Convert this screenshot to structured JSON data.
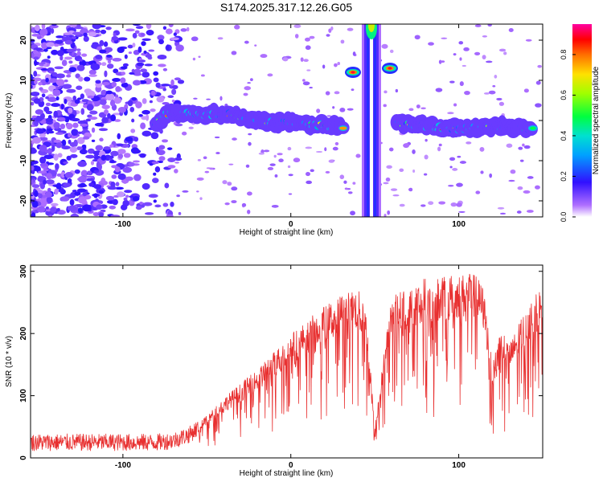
{
  "title": "S174.2025.317.12.26.G05",
  "chart_data": [
    {
      "type": "heatmap",
      "xlabel": "Height of straight line (km)",
      "ylabel": "Frequency (Hz)",
      "xlim": [
        -155,
        150
      ],
      "ylim": [
        -24,
        24
      ],
      "xticks": [
        -100,
        0,
        100
      ],
      "yticks": [
        -20,
        -10,
        0,
        10,
        20
      ],
      "colorbar": {
        "label": "Normalized spectral amplitude",
        "range": [
          0,
          0.95
        ],
        "ticks": [
          0.0,
          0.2,
          0.4,
          0.6,
          0.8
        ],
        "tick_labels": [
          "0.0",
          "0.2",
          "0.4",
          "0.6",
          "0.8"
        ]
      },
      "features": [
        {
          "name": "noise-region",
          "x_range": [
            -155,
            -65
          ],
          "y_range": [
            -24,
            24
          ],
          "amplitude": "low-moderate"
        },
        {
          "name": "main-track",
          "points": [
            [
              -80,
              -1
            ],
            [
              -72,
              2
            ],
            [
              -55,
              1.5
            ],
            [
              -35,
              1.5
            ],
            [
              -20,
              0
            ],
            [
              0,
              -0.5
            ],
            [
              25,
              -1.5
            ],
            [
              32,
              -1.5
            ]
          ],
          "amplitude_peak": 0.9
        },
        {
          "name": "sideband-upper-left",
          "x": 37,
          "y": 12,
          "amplitude_peak": 0.9
        },
        {
          "name": "sideband-upper-right",
          "x": 59,
          "y": 13,
          "amplitude_peak": 0.9
        },
        {
          "name": "vertical-streak",
          "x": 48,
          "y_range": [
            -24,
            24
          ],
          "amplitude_peak": 0.85
        },
        {
          "name": "main-track-right",
          "points": [
            [
              63,
              -0.5
            ],
            [
              80,
              -1.5
            ],
            [
              100,
              -2
            ],
            [
              120,
              -1.5
            ],
            [
              145,
              -2
            ]
          ],
          "amplitude_peak": 0.9
        }
      ]
    },
    {
      "type": "line",
      "xlabel": "Height of straight line (km)",
      "ylabel": "SNR (10 * v/v)",
      "xlim": [
        -155,
        150
      ],
      "ylim": [
        0,
        310
      ],
      "xticks": [
        -100,
        0,
        100
      ],
      "yticks": [
        0,
        100,
        200,
        300
      ],
      "series": [
        {
          "name": "SNR",
          "color": "#e83030",
          "x": [
            -155,
            -130,
            -100,
            -80,
            -70,
            -60,
            -50,
            -40,
            -30,
            -20,
            -10,
            0,
            10,
            20,
            30,
            40,
            45,
            50,
            55,
            60,
            70,
            80,
            90,
            100,
            110,
            115,
            120,
            125,
            130,
            140,
            150
          ],
          "y": [
            25,
            25,
            25,
            25,
            28,
            38,
            60,
            85,
            105,
            125,
            150,
            175,
            195,
            215,
            230,
            240,
            205,
            45,
            140,
            230,
            240,
            255,
            255,
            260,
            260,
            240,
            130,
            185,
            160,
            210,
            245
          ]
        }
      ]
    }
  ]
}
